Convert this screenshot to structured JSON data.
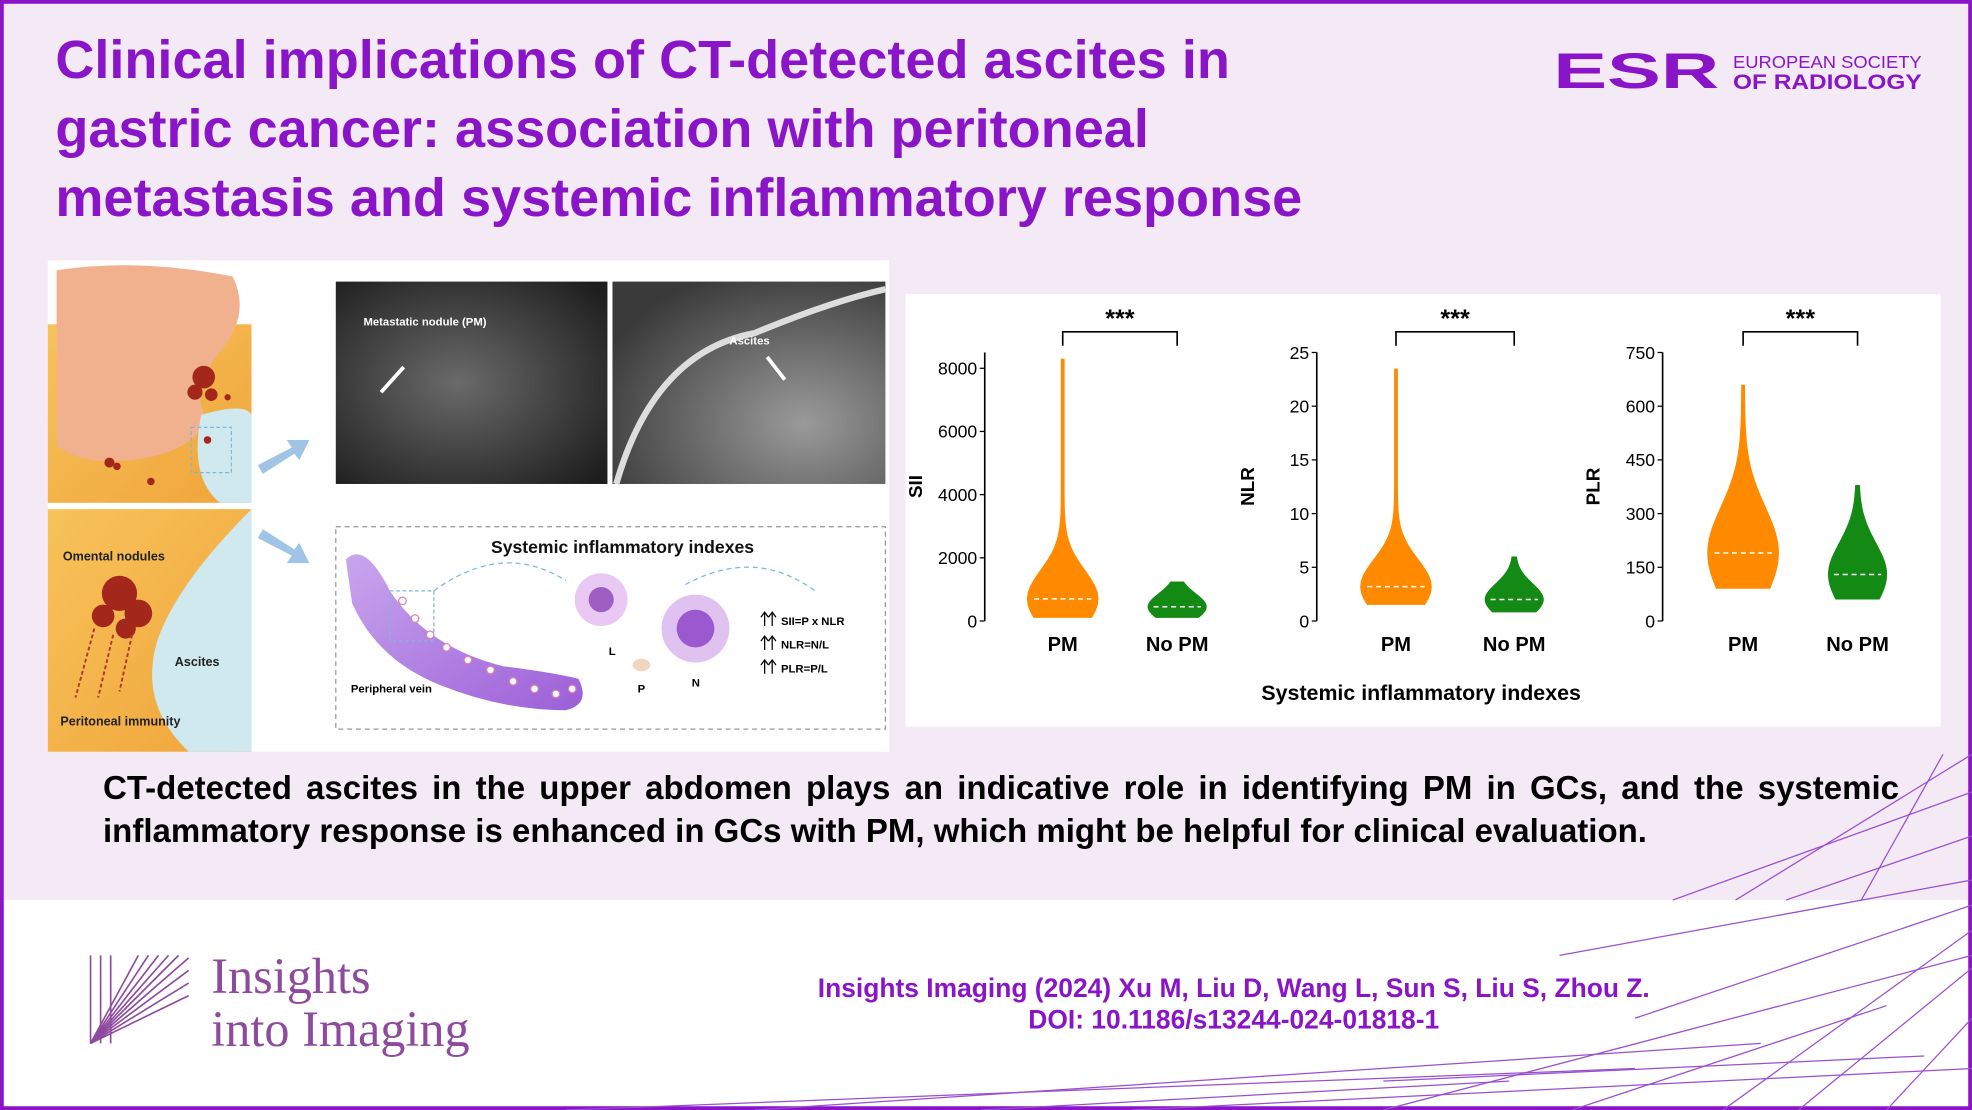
{
  "header": {
    "title": [
      "Clinical implications of CT-detected ascites in",
      "gastric cancer: association with peritoneal",
      "metastasis and systemic inflammatory response"
    ],
    "logo": {
      "acronym": "ESR",
      "name": [
        "EUROPEAN SOCIETY",
        "OF RADIOLOGY"
      ]
    }
  },
  "illustration": {
    "ct_labels": [
      "Metastatic nodule (PM)",
      "Ascites"
    ],
    "anatomy_labels": [
      "Omental nodules",
      "Ascites",
      "Peritoneal immunity"
    ],
    "inflammation": {
      "title": "Systemic inflammatory indexes",
      "vein": "Peripheral vein",
      "cells": [
        "L",
        "P",
        "N"
      ],
      "formulas": [
        "SII=P x NLR",
        "NLR=N/L",
        "PLR=P/L"
      ]
    }
  },
  "charts_x_label": "Systemic inflammatory indexes",
  "chart_data": [
    {
      "type": "violin",
      "ylabel": "SII",
      "annotation": "***",
      "categories": [
        "PM",
        "No PM"
      ],
      "colors": [
        "#ff8a00",
        "#138a13"
      ],
      "min": [
        100,
        100
      ],
      "median": [
        700,
        450
      ],
      "max": [
        8300,
        1250
      ],
      "ylim": [
        0,
        8500
      ],
      "yticks": [
        0,
        2000,
        4000,
        6000,
        8000
      ]
    },
    {
      "type": "violin",
      "ylabel": "NLR",
      "annotation": "***",
      "categories": [
        "PM",
        "No PM"
      ],
      "colors": [
        "#ff8a00",
        "#138a13"
      ],
      "min": [
        1.5,
        0.8
      ],
      "median": [
        3.2,
        2
      ],
      "max": [
        23.5,
        6
      ],
      "ylim": [
        0,
        25
      ],
      "yticks": [
        0,
        5,
        10,
        15,
        20,
        25
      ]
    },
    {
      "type": "violin",
      "ylabel": "PLR",
      "annotation": "***",
      "categories": [
        "PM",
        "No PM"
      ],
      "colors": [
        "#ff8a00",
        "#138a13"
      ],
      "min": [
        90,
        60
      ],
      "median": [
        190,
        130
      ],
      "max": [
        660,
        380
      ],
      "ylim": [
        0,
        750
      ],
      "yticks": [
        0,
        150,
        300,
        450,
        600,
        750
      ]
    }
  ],
  "summary": "CT-detected ascites in the upper abdomen plays an indicative role in identifying PM in GCs, and the systemic inflammatory response is enhanced in GCs with PM, which might be helpful for clinical evaluation.",
  "footer": {
    "journal": [
      "Insights",
      "into Imaging"
    ],
    "citation": [
      "Insights Imaging (2024) Xu M, Liu D, Wang L, Sun S, Liu S, Zhou Z.",
      "DOI: 10.1186/s13244-024-01818-1"
    ]
  }
}
